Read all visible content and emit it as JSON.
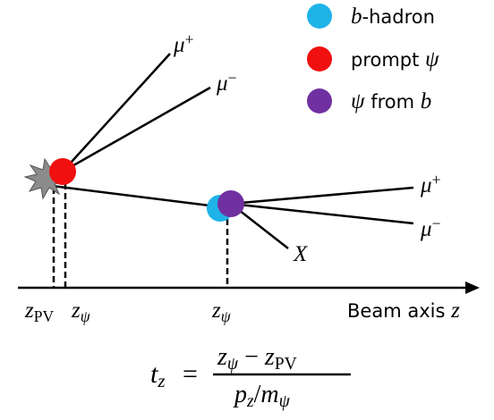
{
  "legend": [
    [
      "b",
      "-hadron"
    ],
    [
      "prompt ",
      "ψ"
    ],
    [
      "ψ",
      " from ",
      "b"
    ]
  ],
  "particles": [
    [
      "μ",
      "+"
    ],
    [
      "μ",
      "−"
    ],
    [
      "μ",
      "+"
    ],
    [
      "μ",
      "−"
    ],
    [
      "X"
    ]
  ],
  "axis": {
    "label": [
      "Beam axis ",
      "z"
    ],
    "ticks": [
      [
        "z",
        "PV"
      ],
      [
        "z",
        "ψ"
      ],
      [
        "z",
        "ψ"
      ]
    ]
  },
  "formula": {
    "lhs": [
      "t",
      "z"
    ],
    "equals": "=",
    "numerator": [
      "z",
      "ψ",
      " − ",
      "z",
      "PV"
    ],
    "denominator": [
      "p",
      "z",
      "/",
      "m",
      "ψ"
    ]
  }
}
